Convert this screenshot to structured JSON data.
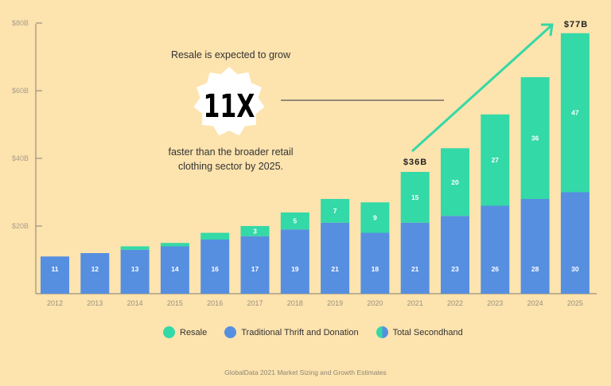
{
  "chart_data": {
    "type": "bar",
    "stacked": true,
    "categories": [
      "2012",
      "2013",
      "2014",
      "2015",
      "2016",
      "2017",
      "2018",
      "2019",
      "2020",
      "2021",
      "2022",
      "2023",
      "2024",
      "2025"
    ],
    "series": [
      {
        "name": "Traditional Thrift and Donation",
        "color": "#568FE0",
        "values": [
          11,
          12,
          13,
          14,
          16,
          17,
          19,
          21,
          18,
          21,
          23,
          26,
          28,
          30
        ],
        "labels": [
          "11",
          "12",
          "13",
          "14",
          "16",
          "17",
          "19",
          "21",
          "18",
          "21",
          "23",
          "26",
          "28",
          "30"
        ]
      },
      {
        "name": "Resale",
        "color": "#33D9A6",
        "values": [
          0,
          0,
          1,
          1,
          2,
          3,
          5,
          7,
          9,
          15,
          20,
          27,
          36,
          47
        ],
        "labels": [
          "",
          "",
          "",
          "",
          "",
          "3",
          "5",
          "7",
          "9",
          "15",
          "20",
          "27",
          "36",
          "47"
        ]
      }
    ],
    "yticks": [
      "$20B",
      "$40B",
      "$60B",
      "$80B"
    ],
    "ylim": [
      0,
      80
    ],
    "grid": false,
    "legend_position": "bottom",
    "annotations": {
      "total_2021": "$36B",
      "total_2025": "$77B"
    }
  },
  "callout": {
    "line1": "Resale is expected to grow",
    "badge": "11X",
    "line2": "faster than the broader retail",
    "line3": "clothing sector by 2025."
  },
  "legend": [
    {
      "label": "Resale"
    },
    {
      "label": "Traditional Thrift and Donation"
    },
    {
      "label": "Total Secondhand"
    }
  ],
  "source": "GlobalData 2021 Market Sizing and Growth Estimates"
}
